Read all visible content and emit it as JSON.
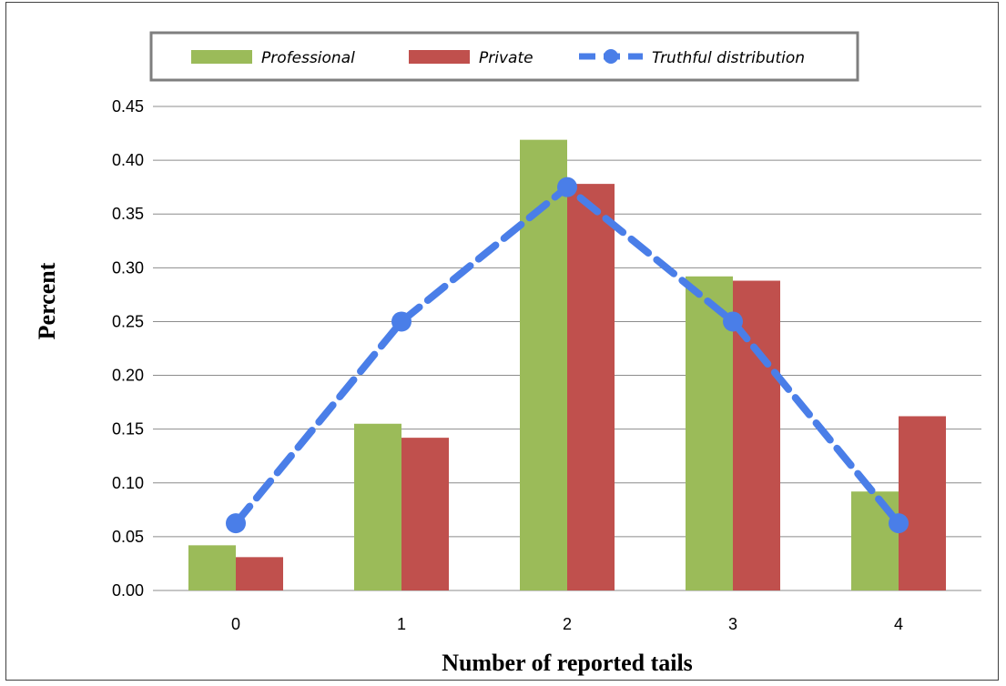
{
  "chart_data": {
    "type": "bar",
    "title": "",
    "xlabel": "Number of reported tails",
    "ylabel": "Percent",
    "categories": [
      "0",
      "1",
      "2",
      "3",
      "4"
    ],
    "ylim": [
      0,
      0.45
    ],
    "yticks": [
      "0.00",
      "0.05",
      "0.10",
      "0.15",
      "0.20",
      "0.25",
      "0.30",
      "0.35",
      "0.40",
      "0.45"
    ],
    "grid": true,
    "legend_position": "top",
    "series": [
      {
        "name": "Professional",
        "kind": "bar",
        "color": "#9BBB59",
        "values": [
          0.042,
          0.155,
          0.419,
          0.292,
          0.092
        ]
      },
      {
        "name": "Private",
        "kind": "bar",
        "color": "#C0504D",
        "values": [
          0.031,
          0.142,
          0.378,
          0.288,
          0.162
        ]
      },
      {
        "name": "Truthful distribution",
        "kind": "line",
        "style": "dashed",
        "marker": "circle",
        "color": "#4A7EE8",
        "values": [
          0.0625,
          0.25,
          0.375,
          0.25,
          0.0625
        ]
      }
    ]
  }
}
